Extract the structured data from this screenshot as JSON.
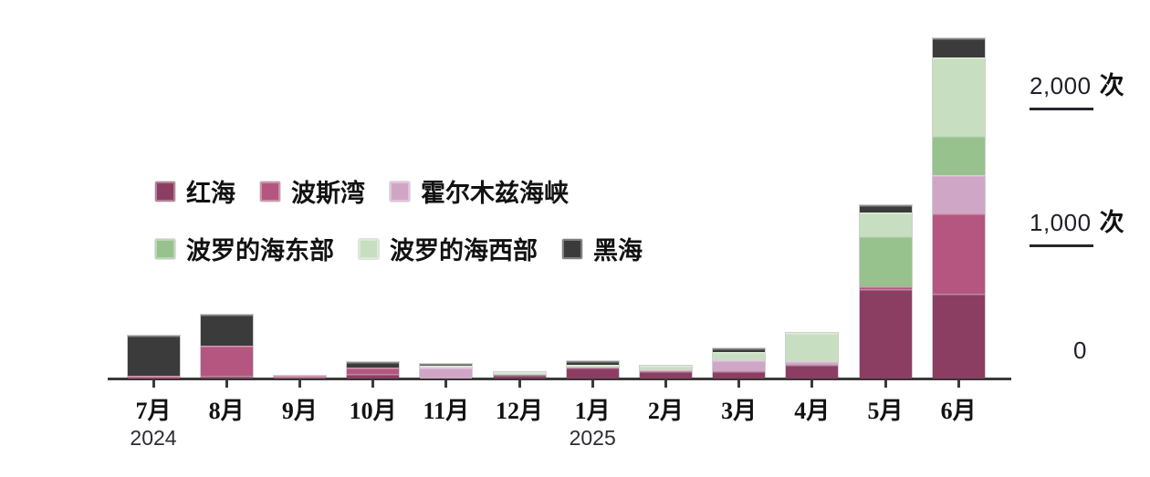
{
  "chart_data": {
    "type": "bar",
    "stacked": true,
    "title": "",
    "unit": "次",
    "categories": [
      "7月",
      "8月",
      "9月",
      "10月",
      "11月",
      "12月",
      "1月",
      "2月",
      "3月",
      "4月",
      "5月",
      "6月"
    ],
    "x_year_labels": [
      {
        "index": 0,
        "label": "2024"
      },
      {
        "index": 6,
        "label": "2025"
      }
    ],
    "series": [
      {
        "name": "红海",
        "color": "#8B3E62",
        "values": [
          0,
          20,
          10,
          30,
          0,
          25,
          75,
          50,
          50,
          100,
          645,
          615
        ]
      },
      {
        "name": "波斯湾",
        "color": "#B4567F",
        "values": [
          15,
          215,
          10,
          50,
          0,
          0,
          0,
          0,
          0,
          0,
          20,
          585
        ]
      },
      {
        "name": "霍尔木兹海峡",
        "color": "#D0A6C6",
        "values": [
          0,
          0,
          0,
          0,
          75,
          0,
          0,
          15,
          80,
          25,
          0,
          280
        ]
      },
      {
        "name": "波罗的海东部",
        "color": "#97C28D",
        "values": [
          0,
          0,
          0,
          0,
          0,
          0,
          0,
          0,
          0,
          0,
          370,
          285
        ]
      },
      {
        "name": "波罗的海西部",
        "color": "#C7DFC0",
        "values": [
          0,
          0,
          0,
          0,
          15,
          20,
          20,
          25,
          60,
          205,
          170,
          570
        ]
      },
      {
        "name": "黑海",
        "color": "#3B3B3B",
        "values": [
          295,
          230,
          0,
          35,
          15,
          0,
          30,
          0,
          30,
          0,
          55,
          140
        ]
      }
    ],
    "ylim": [
      0,
      2000
    ],
    "yticks": [
      {
        "value": 0,
        "label": "0",
        "unit": ""
      },
      {
        "value": 1000,
        "label": "1,000",
        "unit": "次"
      },
      {
        "value": 2000,
        "label": "2,000",
        "unit": "次"
      }
    ],
    "grid": false,
    "legend_position": "top-left",
    "legend_rows": [
      3,
      3
    ]
  }
}
